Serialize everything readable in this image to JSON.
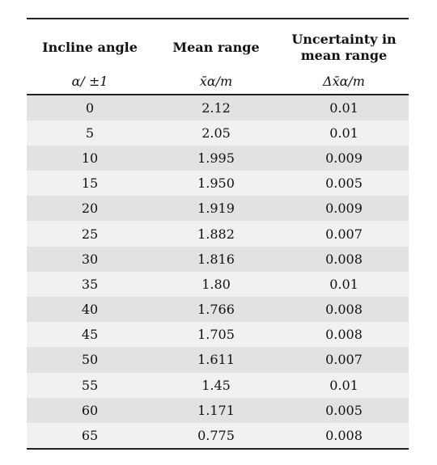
{
  "table": {
    "headers": [
      {
        "title": "Incline angle",
        "unit": "α/  ±1"
      },
      {
        "title": "Mean range",
        "unit": "x̄α/m"
      },
      {
        "title": "Uncertainty in\nmean range",
        "unit": "Δx̄α/m"
      }
    ],
    "rows": [
      [
        "0",
        "2.12",
        "0.01"
      ],
      [
        "5",
        "2.05",
        "0.01"
      ],
      [
        "10",
        "1.995",
        "0.009"
      ],
      [
        "15",
        "1.950",
        "0.005"
      ],
      [
        "20",
        "1.919",
        "0.009"
      ],
      [
        "25",
        "1.882",
        "0.007"
      ],
      [
        "30",
        "1.816",
        "0.008"
      ],
      [
        "35",
        "1.80",
        "0.01"
      ],
      [
        "40",
        "1.766",
        "0.008"
      ],
      [
        "45",
        "1.705",
        "0.008"
      ],
      [
        "50",
        "1.611",
        "0.007"
      ],
      [
        "55",
        "1.45",
        "0.01"
      ],
      [
        "60",
        "1.171",
        "0.005"
      ],
      [
        "65",
        "0.775",
        "0.008"
      ]
    ]
  }
}
